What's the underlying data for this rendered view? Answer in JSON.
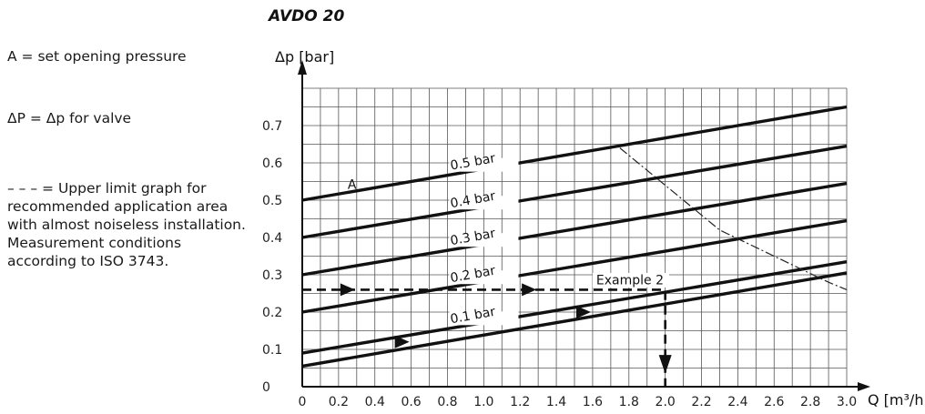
{
  "legend": {
    "line1": "A = set opening pressure",
    "line2": "ΔP = Δp for valve",
    "line3": "– – – = Upper limit graph for recommended application area with almost noiseless installation. Measurement conditions according to ISO 3743."
  },
  "chart_data": {
    "type": "line",
    "title": "AVDO 20",
    "ylabel": "Δp [bar]",
    "xlabel": "Q [m³/h]",
    "xlim": [
      0,
      3.0
    ],
    "ylim": [
      0,
      0.8
    ],
    "x_ticks": [
      "0",
      "0.2",
      "0.4",
      "0.6",
      "0.8",
      "1.0",
      "1.2",
      "1.4",
      "1.6",
      "1.8",
      "2.0",
      "2.2",
      "2.4",
      "2.6",
      "2.8",
      "3.0"
    ],
    "y_ticks": [
      "0",
      "0.1",
      "0.2",
      "0.3",
      "0.4",
      "0.5",
      "0.6",
      "0.7"
    ],
    "grid": true,
    "series": [
      {
        "name": "0.5 bar",
        "x": [
          0,
          3.0
        ],
        "y": [
          0.5,
          0.75
        ]
      },
      {
        "name": "0.4 bar",
        "x": [
          0,
          3.0
        ],
        "y": [
          0.4,
          0.645
        ]
      },
      {
        "name": "0.3 bar",
        "x": [
          0,
          3.0
        ],
        "y": [
          0.3,
          0.545
        ]
      },
      {
        "name": "0.2 bar",
        "x": [
          0,
          3.0
        ],
        "y": [
          0.2,
          0.445
        ]
      },
      {
        "name": "0.1 bar",
        "x": [
          0,
          3.0
        ],
        "y": [
          0.09,
          0.335
        ]
      },
      {
        "name": "",
        "x": [
          0,
          3.0
        ],
        "y": [
          0.055,
          0.305
        ]
      }
    ],
    "upper_limit": {
      "x": [
        1.75,
        2.1,
        2.3,
        2.6,
        2.9,
        3.0
      ],
      "y": [
        0.64,
        0.5,
        0.42,
        0.35,
        0.28,
        0.26
      ]
    },
    "annotations": {
      "curve_A": "A",
      "example": "Example 2",
      "example_path": {
        "x": [
          0,
          2.0,
          2.0
        ],
        "y": [
          0.26,
          0.26,
          0.0
        ]
      }
    }
  }
}
